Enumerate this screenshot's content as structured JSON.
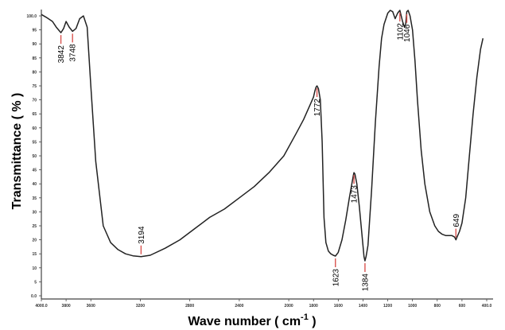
{
  "chart_data": {
    "type": "line",
    "title": "",
    "xlabel": "Wave number ( cm",
    "xlabel_sup": "-1",
    "xlabel_close": " )",
    "ylabel": "Transmittance ( % )",
    "xlim": [
      4000.0,
      400.0
    ],
    "ylim": [
      0.0,
      100.0
    ],
    "grid": false,
    "legend": "none",
    "line_color": "#222222",
    "marker_color": "#d9534f",
    "x_ticks": [
      {
        "value": 4000,
        "label": "4000.0"
      },
      {
        "value": 3800,
        "label": "3800"
      },
      {
        "value": 3600,
        "label": "3600"
      },
      {
        "value": 3200,
        "label": "3200"
      },
      {
        "value": 2800,
        "label": "2800"
      },
      {
        "value": 2400,
        "label": "2400"
      },
      {
        "value": 2000,
        "label": "2000"
      },
      {
        "value": 1800,
        "label": "1800"
      },
      {
        "value": 1600,
        "label": "1600"
      },
      {
        "value": 1400,
        "label": "1400"
      },
      {
        "value": 1200,
        "label": "1200"
      },
      {
        "value": 1000,
        "label": "1000"
      },
      {
        "value": 800,
        "label": "800"
      },
      {
        "value": 600,
        "label": "600"
      },
      {
        "value": 400,
        "label": "400.0"
      }
    ],
    "y_ticks": [
      {
        "value": 0,
        "label": "0.0"
      },
      {
        "value": 5,
        "label": "5"
      },
      {
        "value": 10,
        "label": "10"
      },
      {
        "value": 15,
        "label": "15"
      },
      {
        "value": 20,
        "label": "20"
      },
      {
        "value": 25,
        "label": "25"
      },
      {
        "value": 30,
        "label": "30"
      },
      {
        "value": 35,
        "label": "35"
      },
      {
        "value": 40,
        "label": "40"
      },
      {
        "value": 45,
        "label": "45"
      },
      {
        "value": 50,
        "label": "50"
      },
      {
        "value": 55,
        "label": "55"
      },
      {
        "value": 60,
        "label": "60"
      },
      {
        "value": 65,
        "label": "65"
      },
      {
        "value": 70,
        "label": "70"
      },
      {
        "value": 75,
        "label": "75"
      },
      {
        "value": 80,
        "label": "80"
      },
      {
        "value": 85,
        "label": "85"
      },
      {
        "value": 90,
        "label": "90"
      },
      {
        "value": 95,
        "label": "95"
      },
      {
        "value": 100,
        "label": "100.0"
      }
    ],
    "series": [
      {
        "x": [
          4000,
          3960,
          3910,
          3880,
          3842,
          3820,
          3800,
          3775,
          3748,
          3720,
          3690,
          3660,
          3630,
          3600,
          3560,
          3500,
          3440,
          3380,
          3320,
          3260,
          3194,
          3120,
          3000,
          2880,
          2760,
          2640,
          2520,
          2400,
          2280,
          2160,
          2040,
          1940,
          1880,
          1830,
          1800,
          1790,
          1780,
          1772,
          1760,
          1745,
          1730,
          1715,
          1700,
          1680,
          1660,
          1640,
          1623,
          1600,
          1570,
          1540,
          1510,
          1490,
          1478,
          1473,
          1465,
          1450,
          1430,
          1400,
          1392,
          1384,
          1375,
          1360,
          1330,
          1300,
          1270,
          1250,
          1230,
          1200,
          1180,
          1160,
          1140,
          1120,
          1102,
          1080,
          1065,
          1055,
          1046,
          1035,
          1020,
          1000,
          980,
          960,
          930,
          900,
          860,
          820,
          790,
          760,
          730,
          700,
          680,
          660,
          649,
          640,
          620,
          600,
          570,
          540,
          510,
          480,
          450,
          430
        ],
        "y": [
          100.5,
          99.5,
          98.0,
          96.0,
          94.0,
          95.5,
          98.0,
          96.0,
          94.5,
          95.5,
          99.0,
          100.0,
          96.0,
          75.0,
          48.0,
          25.0,
          19.0,
          16.5,
          15.0,
          14.3,
          14.0,
          14.5,
          17.0,
          20.0,
          24.0,
          28.0,
          31.0,
          35.0,
          39.0,
          44.0,
          50.0,
          58.0,
          63.0,
          68.0,
          71.0,
          73.0,
          74.5,
          75.0,
          74.0,
          70.0,
          55.0,
          28.0,
          19.0,
          16.0,
          15.0,
          14.5,
          14.2,
          15.5,
          20.0,
          27.0,
          35.0,
          40.0,
          43.0,
          44.0,
          43.5,
          40.0,
          32.0,
          18.0,
          14.0,
          12.5,
          14.0,
          18.0,
          38.0,
          62.0,
          82.0,
          92.0,
          97.0,
          101.0,
          102.0,
          101.5,
          99.0,
          101.0,
          102.0,
          98.0,
          96.0,
          97.0,
          101.5,
          102.0,
          100.0,
          95.0,
          84.0,
          70.0,
          52.0,
          40.0,
          30.0,
          25.0,
          23.0,
          22.0,
          21.5,
          21.5,
          21.5,
          21.0,
          20.0,
          21.0,
          23.0,
          26.0,
          35.0,
          50.0,
          65.0,
          78.0,
          88.0,
          92.0
        ]
      }
    ],
    "annotations": [
      {
        "label": "3842",
        "x": 3842,
        "y": 94.0,
        "side": "below"
      },
      {
        "label": "3748",
        "x": 3748,
        "y": 94.5,
        "side": "below"
      },
      {
        "label": "3194",
        "x": 3194,
        "y": 14.0,
        "side": "above"
      },
      {
        "label": "1772",
        "x": 1772,
        "y": 75.0,
        "side": "below"
      },
      {
        "label": "1623",
        "x": 1623,
        "y": 14.2,
        "side": "below"
      },
      {
        "label": "1473",
        "x": 1473,
        "y": 44.0,
        "side": "below"
      },
      {
        "label": "1384",
        "x": 1384,
        "y": 12.5,
        "side": "below"
      },
      {
        "label": "1102",
        "x": 1102,
        "y": 102.0,
        "side": "below"
      },
      {
        "label": "1046",
        "x": 1046,
        "y": 101.5,
        "side": "below"
      },
      {
        "label": "649",
        "x": 649,
        "y": 20.0,
        "side": "above"
      }
    ]
  }
}
